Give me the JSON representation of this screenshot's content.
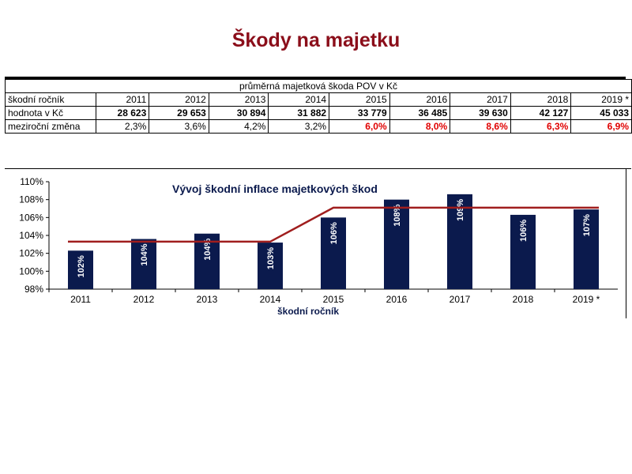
{
  "page": {
    "title": "Škody na majetku"
  },
  "table": {
    "caption": "průměrná majetková škoda POV v Kč",
    "rows": [
      {
        "label": "škodní ročník",
        "cells": [
          "2011",
          "2012",
          "2013",
          "2014",
          "2015",
          "2016",
          "2017",
          "2018",
          "2019 *"
        ]
      },
      {
        "label": "hodnota v Kč",
        "cells": [
          "28 623",
          "29 653",
          "30 894",
          "31 882",
          "33 779",
          "36 485",
          "39 630",
          "42 127",
          "45 033"
        ]
      },
      {
        "label": "meziroční změna",
        "cells": [
          "2,3%",
          "3,6%",
          "4,2%",
          "3,2%",
          "6,0%",
          "8,0%",
          "8,6%",
          "6,3%",
          "6,9%"
        ]
      }
    ],
    "highlight_color": "#e00000"
  },
  "chart_data": {
    "type": "bar",
    "title": "Vývoj škodní inflace majetkových škod",
    "xlabel": "škodní ročník",
    "ylabel": "",
    "categories": [
      "2011",
      "2012",
      "2013",
      "2014",
      "2015",
      "2016",
      "2017",
      "2018",
      "2019 *"
    ],
    "series": [
      {
        "values": [
          102.3,
          103.6,
          104.2,
          103.2,
          106.0,
          108.0,
          108.6,
          106.3,
          106.9
        ],
        "data_labels": [
          "102%",
          "104%",
          "104%",
          "103%",
          "106%",
          "108%",
          "109%",
          "106%",
          "107%"
        ],
        "color": "#0b1a4d"
      }
    ],
    "trend_line": {
      "values": [
        103.3,
        103.3,
        103.3,
        103.3,
        107.1,
        107.1,
        107.1,
        107.1,
        107.1
      ],
      "color": "#a01e1e"
    },
    "y_ticks": [
      "98%",
      "100%",
      "102%",
      "104%",
      "106%",
      "108%",
      "110%"
    ],
    "ylim": [
      98,
      110
    ],
    "grid": false
  }
}
